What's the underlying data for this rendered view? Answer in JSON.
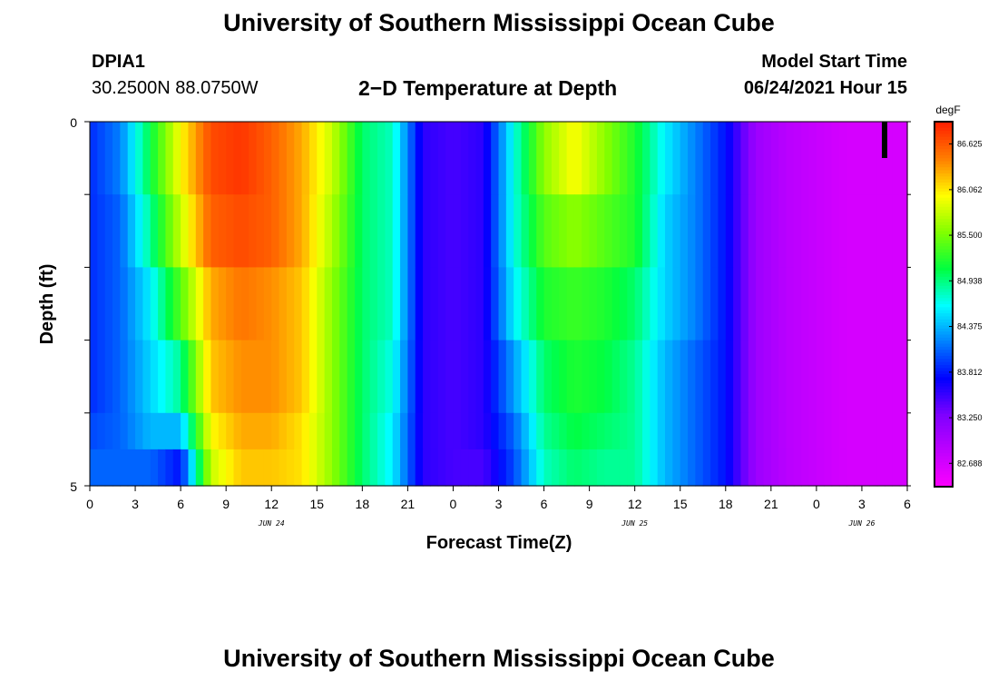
{
  "page": {
    "title_top": "University of Southern Mississippi Ocean Cube",
    "title_bottom": "University of Southern Mississippi Ocean Cube",
    "station": "DPIA1",
    "coords": "30.2500N  88.0750W",
    "subtitle": "2−D Temperature at Depth",
    "start_label": "Model Start Time",
    "start_value": "06/24/2021 Hour 15"
  },
  "chart_data": {
    "type": "heatmap",
    "title": "2−D Temperature at Depth",
    "xlabel": "Forecast Time(Z)",
    "ylabel": "Depth (ft)",
    "x_tick_labels": [
      "0",
      "3",
      "6",
      "9",
      "12",
      "15",
      "18",
      "21",
      "0",
      "3",
      "6",
      "9",
      "12",
      "15",
      "18",
      "21",
      "0",
      "3",
      "6"
    ],
    "date_labels": [
      "JUN 24",
      "JUN 25",
      "JUN 26"
    ],
    "ylim": [
      0,
      5
    ],
    "y_tick_labels": [
      "0",
      "5"
    ],
    "colorbar": {
      "unit": "degF",
      "ticks": [
        "86.625",
        "86.062",
        "85.500",
        "84.938",
        "84.375",
        "83.812",
        "83.250",
        "82.688"
      ],
      "min": 82.4,
      "max": 86.9,
      "colors": [
        "#ff00ff",
        "#c000ff",
        "#7f00ff",
        "#0000ff",
        "#0080ff",
        "#00ffff",
        "#00ff40",
        "#80ff00",
        "#ffff00",
        "#ff8000",
        "#ff2000"
      ]
    },
    "hours": [
      0,
      2,
      4,
      6,
      8,
      10,
      12,
      14,
      16,
      18,
      20,
      22,
      24,
      26,
      28,
      30,
      32,
      34,
      36,
      38,
      40,
      42,
      44,
      46,
      48,
      50,
      52,
      54
    ],
    "depth_layers": [
      "0-1",
      "1-2",
      "2-3",
      "3-4",
      "4-4.5",
      "4.5-5"
    ],
    "values": [
      [
        83.9,
        84.2,
        85.1,
        86.0,
        86.7,
        86.8,
        86.6,
        86.3,
        85.8,
        85.0,
        84.8,
        83.6,
        83.5,
        83.6,
        84.7,
        85.6,
        86.0,
        85.6,
        85.2,
        84.6,
        84.2,
        83.8,
        83.1,
        82.9,
        82.8,
        82.7,
        82.7,
        82.7
      ],
      [
        83.9,
        84.1,
        84.9,
        85.8,
        86.6,
        86.7,
        86.6,
        86.3,
        85.7,
        85.0,
        84.8,
        83.6,
        83.5,
        83.6,
        84.7,
        85.4,
        85.6,
        85.4,
        85.2,
        84.5,
        84.2,
        83.8,
        83.1,
        82.9,
        82.8,
        82.7,
        82.7,
        82.7
      ],
      [
        83.9,
        84.1,
        84.6,
        85.4,
        86.3,
        86.5,
        86.4,
        86.2,
        85.6,
        85.0,
        84.8,
        83.6,
        83.5,
        83.6,
        84.6,
        85.2,
        85.3,
        85.2,
        85.0,
        84.5,
        84.2,
        83.8,
        83.1,
        82.9,
        82.8,
        82.7,
        82.7,
        82.7
      ],
      [
        83.9,
        84.1,
        84.5,
        84.9,
        86.2,
        86.4,
        86.4,
        86.2,
        85.6,
        85.0,
        84.7,
        83.6,
        83.5,
        83.6,
        84.3,
        85.0,
        85.2,
        85.1,
        84.9,
        84.4,
        84.1,
        83.8,
        83.1,
        82.9,
        82.8,
        82.7,
        82.7,
        82.7
      ],
      [
        84.0,
        84.1,
        84.4,
        84.4,
        86.0,
        86.3,
        86.3,
        86.1,
        85.6,
        85.0,
        84.6,
        83.6,
        83.5,
        83.6,
        84.1,
        84.9,
        85.1,
        85.0,
        84.9,
        84.4,
        84.1,
        83.8,
        83.1,
        82.9,
        82.8,
        82.7,
        82.7,
        82.7
      ],
      [
        84.1,
        84.1,
        84.1,
        83.8,
        85.8,
        86.2,
        86.2,
        86.1,
        85.6,
        85.0,
        84.6,
        83.6,
        83.5,
        83.5,
        84.0,
        84.8,
        85.0,
        84.9,
        84.9,
        84.4,
        84.1,
        83.8,
        83.1,
        82.9,
        82.8,
        82.7,
        82.7,
        82.7
      ]
    ],
    "current_time_marker_hour": 52.5
  }
}
